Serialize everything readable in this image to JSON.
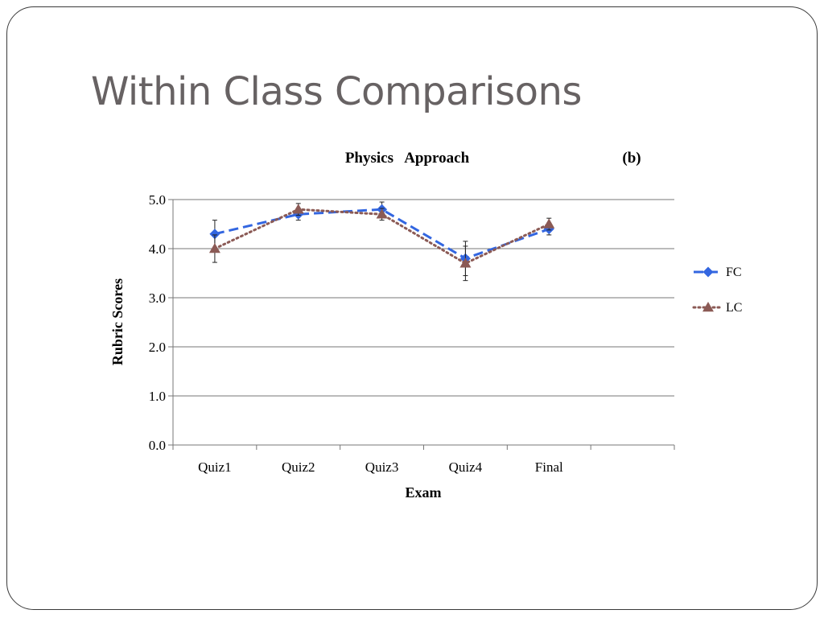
{
  "slide": {
    "title": "Within Class Comparisons"
  },
  "chart_data": {
    "type": "line",
    "title": "Physics   Approach",
    "subtitle": "(b)",
    "xlabel": "Exam",
    "ylabel": "Rubric Scores",
    "categories": [
      "Quiz1",
      "Quiz2",
      "Quiz3",
      "Quiz4",
      "Final"
    ],
    "ylim": [
      0,
      5
    ],
    "yticks": [
      "0.0",
      "1.0",
      "2.0",
      "3.0",
      "4.0",
      "5.0"
    ],
    "grid": true,
    "legend_position": "right",
    "series": [
      {
        "name": "FC",
        "values": [
          4.3,
          4.7,
          4.8,
          3.8,
          4.4
        ],
        "errors": [
          0.28,
          0.12,
          0.15,
          0.35,
          0.12
        ],
        "color": "#3366e0",
        "line_style": "dashed",
        "marker": "diamond"
      },
      {
        "name": "LC",
        "values": [
          4.0,
          4.8,
          4.7,
          3.7,
          4.5
        ],
        "errors": [
          0.28,
          0.12,
          0.12,
          0.35,
          0.12
        ],
        "color": "#8b5a55",
        "line_style": "dotted",
        "marker": "triangle"
      }
    ]
  }
}
